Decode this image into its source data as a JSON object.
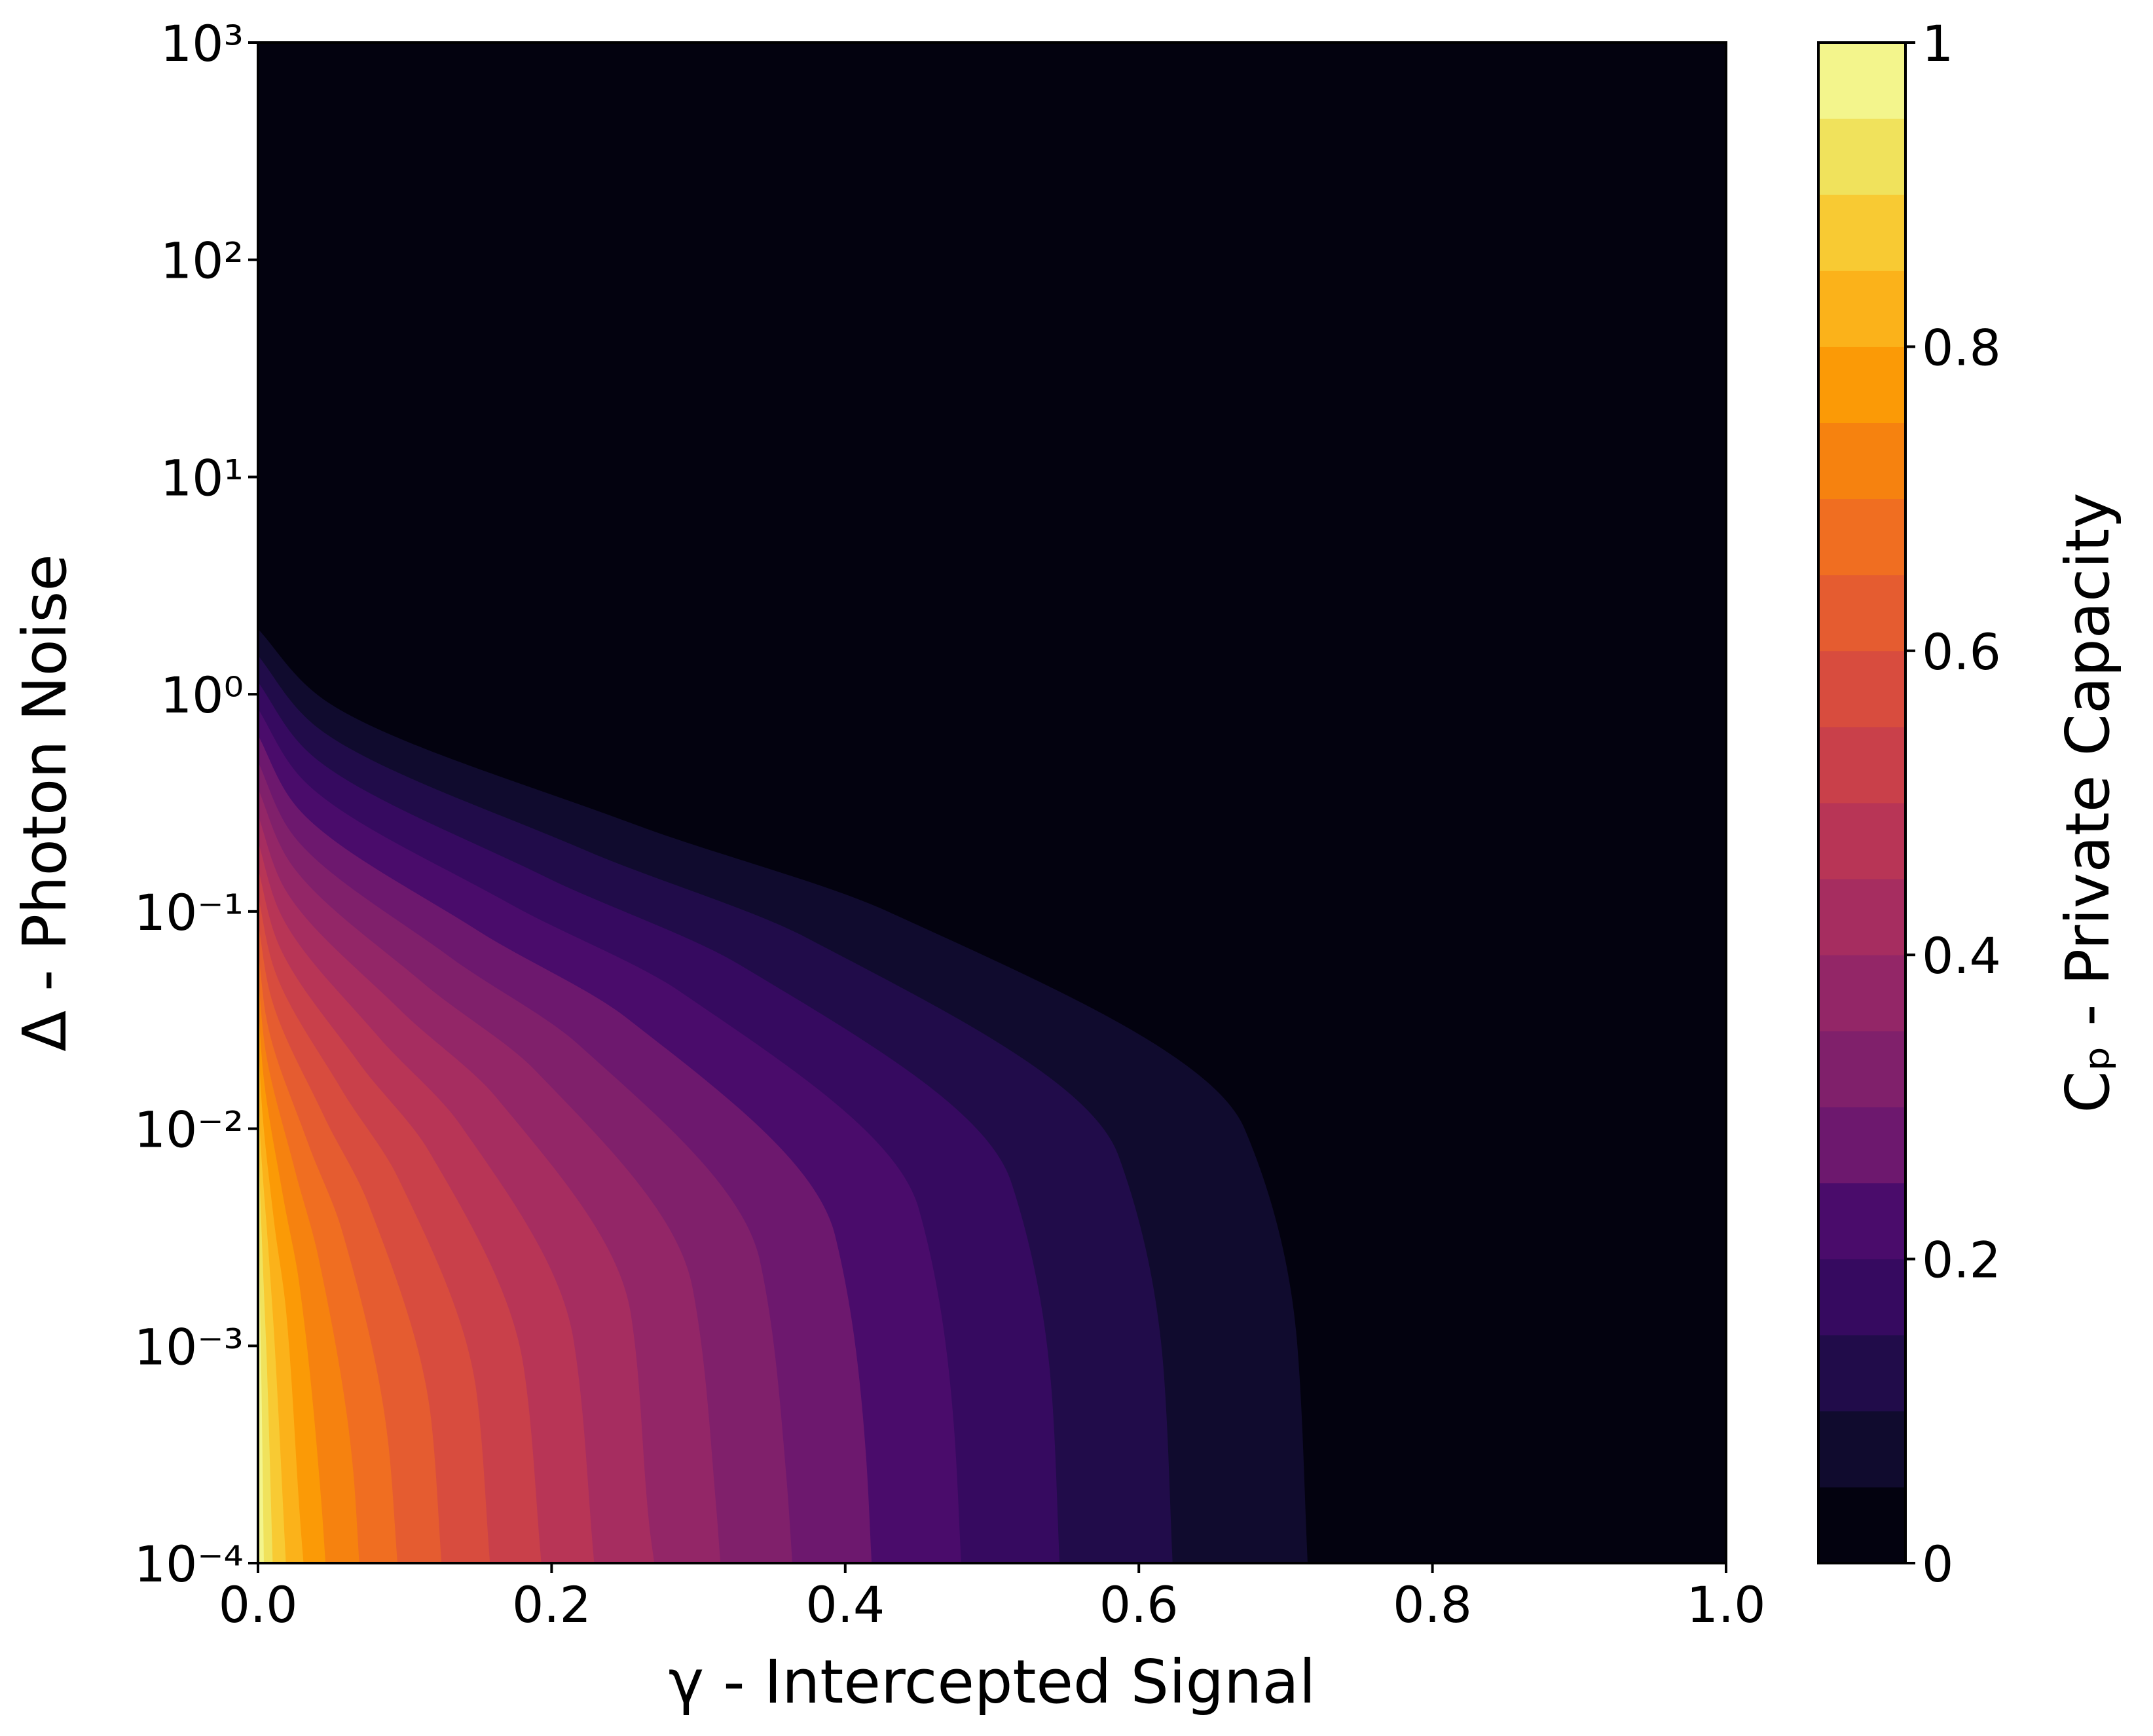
{
  "chart_data": {
    "type": "contourf",
    "xlabel": "γ - Intercepted Signal",
    "ylabel": "Δ - Photon Noise",
    "colorbar_label": "Cₚ - Private Capacity",
    "xlim": [
      0,
      1
    ],
    "ylim": [
      0.0001,
      1000
    ],
    "yscale": "log",
    "xticks": [
      {
        "value": 0,
        "label": "0.0"
      },
      0.2,
      0.4,
      0.6,
      0.8,
      {
        "value": 1,
        "label": "1.0"
      }
    ],
    "yticks": [
      {
        "value": 0.0001,
        "label": "10⁻⁴"
      },
      {
        "value": 0.001,
        "label": "10⁻³"
      },
      {
        "value": 0.01,
        "label": "10⁻²"
      },
      {
        "value": 0.1,
        "label": "10⁻¹"
      },
      {
        "value": 1,
        "label": "10⁰"
      },
      {
        "value": 10,
        "label": "10¹"
      },
      {
        "value": 100,
        "label": "10²"
      },
      {
        "value": 1000,
        "label": "10³"
      }
    ],
    "levels": [
      0,
      0.05,
      0.1,
      0.15,
      0.2,
      0.25,
      0.3,
      0.35,
      0.4,
      0.45,
      0.5,
      0.55,
      0.6,
      0.65,
      0.7,
      0.75,
      0.8,
      0.85,
      0.9,
      0.95,
      1
    ],
    "colors": [
      "#03020f",
      "#100b2e",
      "#210c4a",
      "#360a60",
      "#4a0c6b",
      "#6d186e",
      "#80206b",
      "#932667",
      "#a62d60",
      "#b83556",
      "#c9404a",
      "#d84c3e",
      "#e55c30",
      "#f06e21",
      "#f6820f",
      "#fb9a06",
      "#fbb21a",
      "#f8ca33",
      "#f0e25c",
      "#f3f58c"
    ],
    "colorbar_ticks": [
      0,
      0.2,
      0.4,
      0.6,
      0.8,
      1
    ],
    "contours": [
      {
        "level": 0.05,
        "x": [
          0,
          0.04,
          0.257,
          0.429,
          0.672,
          0.708,
          0.715
        ],
        "y": [
          2.0,
          1.0,
          0.251,
          0.1,
          0.01,
          0.001,
          0.0001
        ]
      },
      {
        "level": 0.1,
        "x": [
          0,
          0.035,
          0.224,
          0.374,
          0.586,
          0.617,
          0.623
        ],
        "y": [
          1.51,
          0.755,
          0.19,
          0.0755,
          0.00755,
          0.000755,
          0.0001
        ]
      },
      {
        "level": 0.15,
        "x": [
          0,
          0.031,
          0.197,
          0.328,
          0.513,
          0.541,
          0.546
        ],
        "y": [
          1.14,
          0.569,
          0.143,
          0.0569,
          0.00569,
          0.000569,
          0.0001
        ]
      },
      {
        "level": 0.2,
        "x": [
          0,
          0.027,
          0.172,
          0.287,
          0.45,
          0.474,
          0.479
        ],
        "y": [
          0.859,
          0.43,
          0.108,
          0.043,
          0.0043,
          0.00043,
          0.0001
        ]
      },
      {
        "level": 0.25,
        "x": [
          0,
          0.023,
          0.15,
          0.251,
          0.393,
          0.414,
          0.418
        ],
        "y": [
          0.649,
          0.324,
          0.0814,
          0.0324,
          0.00324,
          0.000324,
          0.0001
        ]
      },
      {
        "level": 0.3,
        "x": [
          0,
          0.02,
          0.131,
          0.218,
          0.342,
          0.36,
          0.364
        ],
        "y": [
          0.49,
          0.245,
          0.0615,
          0.0245,
          0.00245,
          0.000245,
          0.0001
        ]
      },
      {
        "level": 0.35,
        "x": [
          0,
          0.018,
          0.113,
          0.189,
          0.296,
          0.312,
          0.315
        ],
        "y": [
          0.37,
          0.185,
          0.0465,
          0.0185,
          0.00185,
          0.000185,
          0.0001
        ]
      },
      {
        "level": 0.4,
        "x": [
          0,
          0.015,
          0.097,
          0.162,
          0.254,
          0.267,
          0.27
        ],
        "y": [
          0.279,
          0.14,
          0.0351,
          0.014,
          0.0014,
          0.00014,
          0.0001
        ]
      },
      {
        "level": 0.45,
        "x": [
          0,
          0.013,
          0.082,
          0.137,
          0.215,
          0.229
        ],
        "y": [
          0.211,
          0.106,
          0.0265,
          0.0106,
          0.00106,
          0.0001
        ]
      },
      {
        "level": 0.5,
        "x": [
          0,
          0.011,
          0.069,
          0.116,
          0.181,
          0.193
        ],
        "y": [
          0.159,
          0.0796,
          0.02,
          0.00796,
          0.000796,
          0.0001
        ]
      },
      {
        "level": 0.55,
        "x": [
          0,
          0.009,
          0.057,
          0.095,
          0.149,
          0.158
        ],
        "y": [
          0.12,
          0.0601,
          0.0151,
          0.00601,
          0.000601,
          0.0001
        ]
      },
      {
        "level": 0.6,
        "x": [
          0,
          0.007,
          0.045,
          0.075,
          0.118,
          0.125
        ],
        "y": [
          0.0908,
          0.0454,
          0.0114,
          0.00454,
          0.000454,
          0.0001
        ]
      },
      {
        "level": 0.65,
        "x": [
          0,
          0.005,
          0.034,
          0.057,
          0.089,
          0.095
        ],
        "y": [
          0.0686,
          0.0343,
          0.00861,
          0.00343,
          0.000343,
          0.0001
        ]
      },
      {
        "level": 0.7,
        "x": [
          0,
          0.004,
          0.025,
          0.041,
          0.065,
          0.069
        ],
        "y": [
          0.0518,
          0.0259,
          0.0065,
          0.00259,
          0.000259,
          0.0001
        ]
      },
      {
        "level": 0.75,
        "x": [
          0,
          0.003,
          0.017,
          0.028,
          0.043,
          0.046
        ],
        "y": [
          0.0391,
          0.0196,
          0.00491,
          0.00196,
          0.000196,
          0.0001
        ]
      },
      {
        "level": 0.8,
        "x": [
          0,
          0.002,
          0.011,
          0.019,
          0.029,
          0.031
        ],
        "y": [
          0.0295,
          0.0148,
          0.00371,
          0.00148,
          0.000148,
          0.0001
        ]
      },
      {
        "level": 0.85,
        "x": [
          0,
          0.001,
          0.007,
          0.011,
          0.019
        ],
        "y": [
          0.0223,
          0.0112,
          0.00281,
          0.00112,
          0.0001
        ]
      },
      {
        "level": 0.9,
        "x": [
          0,
          0.0006,
          0.0036,
          0.006,
          0.01
        ],
        "y": [
          0.0168,
          0.00842,
          0.00211,
          0.000842,
          0.0001
        ]
      },
      {
        "level": 0.95,
        "x": [
          0,
          0.0002,
          0.0014,
          0.0024,
          0.004
        ],
        "y": [
          0.0127,
          0.00636,
          0.0016,
          0.000636,
          0.0001
        ]
      }
    ]
  }
}
